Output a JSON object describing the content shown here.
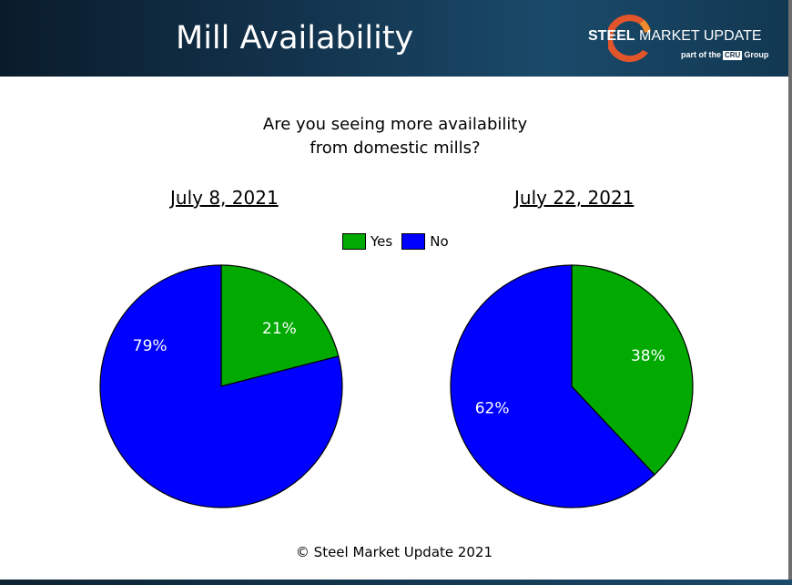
{
  "header": {
    "title": "Mill Availability",
    "logo": {
      "strong": "STEEL",
      "rest": " MARKET UPDATE",
      "sub_prefix": "part of the",
      "sub_mark": "CRU",
      "sub_suffix": "Group"
    }
  },
  "question_line1": "Are you seeing more availability",
  "question_line2": "from domestic mills?",
  "footer": "© Steel Market Update 2021",
  "colors": {
    "yes": "#00aa00",
    "no": "#0000ff",
    "header": "#12314a"
  },
  "chart_data": [
    {
      "type": "pie",
      "title": "July 8, 2021",
      "categories": [
        "Yes",
        "No"
      ],
      "values": [
        21,
        79
      ],
      "labels": [
        "21%",
        "79%"
      ],
      "legend": "top"
    },
    {
      "type": "pie",
      "title": "July 22, 2021",
      "categories": [
        "Yes",
        "No"
      ],
      "values": [
        38,
        62
      ],
      "labels": [
        "38%",
        "62%"
      ],
      "legend": "top"
    }
  ]
}
